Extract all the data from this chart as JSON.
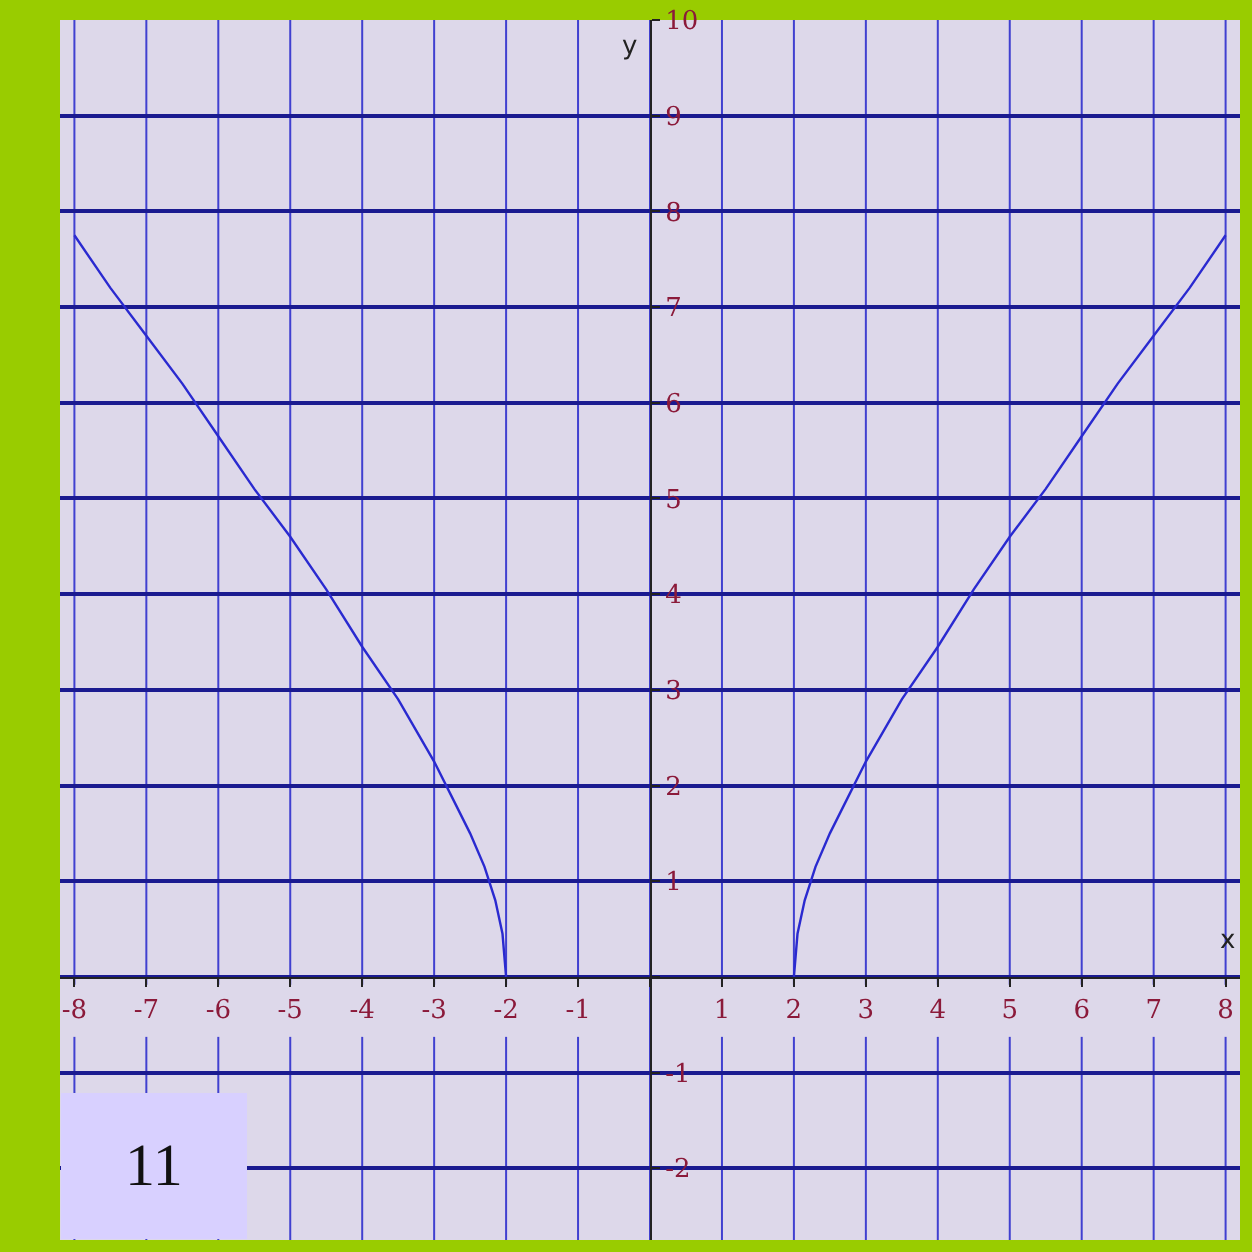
{
  "chart_data": {
    "type": "line",
    "xlabel": "x",
    "ylabel": "y",
    "annotations": [
      "11"
    ],
    "xlim": [
      -8.2,
      8.2
    ],
    "ylim": [
      -2.75,
      10
    ],
    "xticks": [
      -8,
      -7,
      -6,
      -5,
      -4,
      -3,
      -2,
      -1,
      {
        "value": 0,
        "label": null
      },
      1,
      2,
      3,
      4,
      5,
      6,
      7,
      8
    ],
    "yticks": [
      -2,
      -1,
      {
        "value": 0,
        "label": null
      },
      1,
      2,
      3,
      4,
      5,
      6,
      7,
      8,
      9,
      10
    ],
    "grid": true,
    "marker": "none",
    "line_style": "solid",
    "series": [
      {
        "color": "#2a2ad0",
        "x": [
          -8,
          -7.5,
          -7,
          -6.5,
          -6,
          -5.5,
          -5,
          -4.5,
          -4,
          -3.5,
          -3,
          -2.7,
          -2.5,
          -2.3,
          -2.15,
          -2.05,
          -2
        ],
        "values": [
          7.75,
          7.2,
          6.7,
          6.2,
          5.65,
          5.1,
          4.6,
          4.05,
          3.45,
          2.9,
          2.25,
          1.8,
          1.5,
          1.15,
          0.8,
          0.45,
          0
        ]
      },
      {
        "color": "#2a2ad0",
        "x": [
          2,
          2.05,
          2.15,
          2.3,
          2.5,
          2.7,
          3,
          3.5,
          4,
          4.5,
          5,
          5.5,
          6,
          6.5,
          7,
          7.5,
          8
        ],
        "values": [
          0,
          0.45,
          0.8,
          1.15,
          1.5,
          1.8,
          2.25,
          2.9,
          3.45,
          4.05,
          4.6,
          5.1,
          5.65,
          6.2,
          6.7,
          7.2,
          7.75
        ]
      }
    ]
  }
}
